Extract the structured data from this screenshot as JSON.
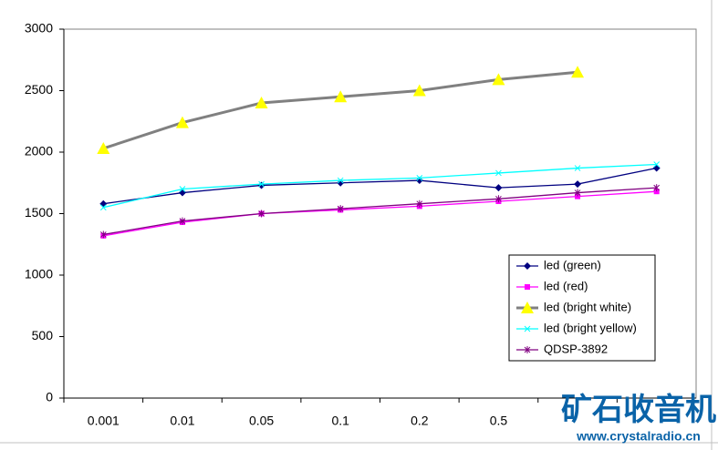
{
  "chart_data": {
    "type": "line",
    "categories": [
      "0.001",
      "0.01",
      "0.05",
      "0.1",
      "0.2",
      "0.5",
      null,
      null
    ],
    "series": [
      {
        "name": "led (green)",
        "color": "#000080",
        "marker": "diamond",
        "values": [
          1580,
          1670,
          1730,
          1750,
          1770,
          1710,
          1740,
          1870
        ]
      },
      {
        "name": "led (red)",
        "color": "#ff00ff",
        "marker": "square",
        "values": [
          1320,
          1430,
          1500,
          1530,
          1560,
          1600,
          1640,
          1680
        ]
      },
      {
        "name": "led (bright white)",
        "color": "#808080",
        "marker": "triangle",
        "marker_color": "#ffff00",
        "values": [
          2030,
          2240,
          2400,
          2450,
          2500,
          2590,
          2650,
          null
        ]
      },
      {
        "name": "led (bright yellow)",
        "color": "#00ffff",
        "marker": "x",
        "values": [
          1550,
          1700,
          1740,
          1770,
          1790,
          1830,
          1870,
          1900
        ]
      },
      {
        "name": "QDSP-3892",
        "color": "#800080",
        "marker": "star",
        "values": [
          1330,
          1440,
          1500,
          1540,
          1580,
          1620,
          1670,
          1710
        ]
      }
    ],
    "ylim": [
      0,
      3000
    ],
    "yticks": [
      0,
      500,
      1000,
      1500,
      2000,
      2500,
      3000
    ],
    "grid": false,
    "legend": "lower right"
  },
  "watermark": {
    "title": "矿石收音机",
    "url": "www.crystalradio.cn"
  }
}
